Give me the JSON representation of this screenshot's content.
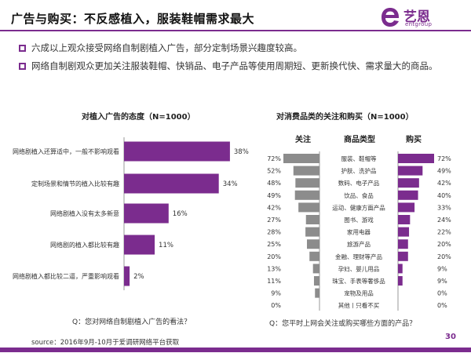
{
  "title": "广告与购买：不反感植入，服装鞋帽需求最大",
  "logo": {
    "name": "艺恩",
    "sub": "entgroup"
  },
  "bullets": [
    "六成以上观众接受网络自制剧植入广告，部分定制场景兴趣度较高。",
    "网络自制剧观众更加关注服装鞋帽、快销品、电子产品等使用周期短、更新换代快、需求量大的商品。"
  ],
  "colors": {
    "accent": "#7b2c8e",
    "gray_bar": "#8c8c8c"
  },
  "chart_data": [
    {
      "type": "bar",
      "orientation": "horizontal",
      "title": "对植入广告的态度（N=1000）",
      "categories": [
        "网络剧植入还算适中，一般不影响观看",
        "定制场景和情节的植入比较有趣",
        "网络剧植入没有太多新意",
        "网络剧的植入都比较有趣",
        "网络剧植入都比较二逼，严重影响观看"
      ],
      "values": [
        38,
        34,
        16,
        11,
        2
      ],
      "value_labels": [
        "38%",
        "34%",
        "16%",
        "11%",
        "2%"
      ],
      "xlim": [
        0,
        40
      ],
      "question": "Q：您对网络自制剧植入广告的看法？"
    },
    {
      "type": "bar",
      "orientation": "horizontal-butterfly",
      "title": "对消费品类的关注和购买（N=1000）",
      "column_headers": {
        "left": "关注",
        "center": "商品类型",
        "right": "购买"
      },
      "categories": [
        "服装、鞋帽等",
        "护肤、洗护品",
        "数码、电子产品",
        "饮品、食品",
        "运动、健康方面产品",
        "图书、游戏",
        "家用电器",
        "旅游产品",
        "金融、理财等产品",
        "孕妇、婴儿用品",
        "珠宝、手表等奢侈品",
        "宠物及用品",
        "其他丨只看不买"
      ],
      "series": [
        {
          "name": "关注",
          "values": [
            72,
            52,
            48,
            49,
            42,
            27,
            28,
            25,
            20,
            13,
            11,
            9,
            0
          ],
          "value_labels": [
            "72%",
            "52%",
            "48%",
            "49%",
            "42%",
            "27%",
            "28%",
            "25%",
            "20%",
            "13%",
            "11%",
            "9%",
            "0%"
          ]
        },
        {
          "name": "购买",
          "values": [
            72,
            49,
            42,
            40,
            33,
            24,
            22,
            20,
            20,
            9,
            9,
            0,
            0
          ],
          "value_labels": [
            "72%",
            "49%",
            "42%",
            "40%",
            "33%",
            "24%",
            "22%",
            "20%",
            "20%",
            "9%",
            "9%",
            "0%",
            "0%"
          ]
        }
      ],
      "xlim": [
        0,
        72
      ],
      "question": "Q：您平时上网会关注或购买哪些方面的产品？"
    }
  ],
  "source": "source：2016年9月-10月于爱调研网络平台获取",
  "page_number": "30"
}
